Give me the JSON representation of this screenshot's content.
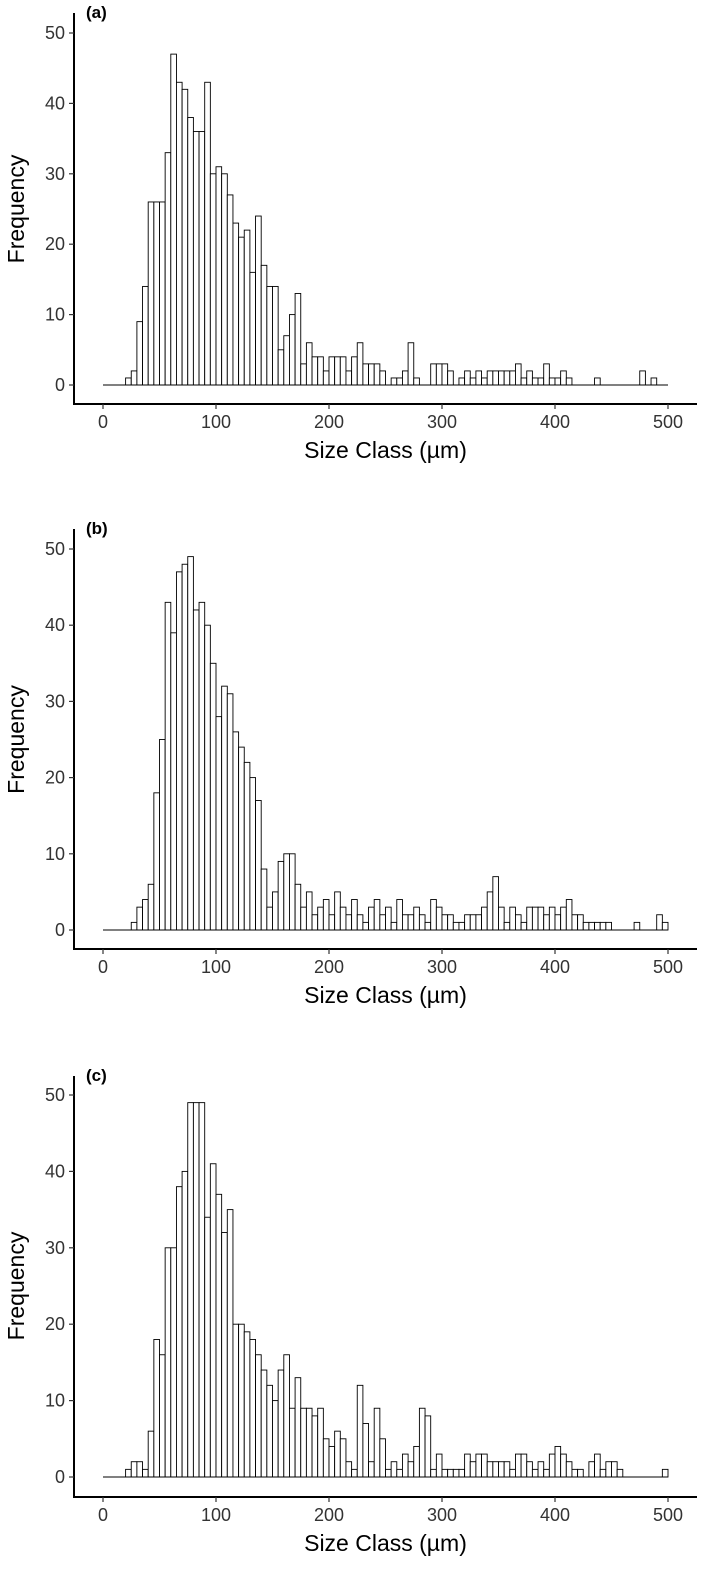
{
  "chart_data": [
    {
      "type": "bar",
      "panel_label": "(a)",
      "xlabel": "Size Class (µm)",
      "ylabel": "Frequency",
      "xlim": [
        0,
        500
      ],
      "ylim": [
        0,
        50
      ],
      "xticks": [
        0,
        100,
        200,
        300,
        400,
        500
      ],
      "yticks": [
        0,
        10,
        20,
        30,
        40,
        50
      ],
      "bin_width": 5,
      "bin_starts": [
        0,
        5,
        10,
        15,
        20,
        25,
        30,
        35,
        40,
        45,
        50,
        55,
        60,
        65,
        70,
        75,
        80,
        85,
        90,
        95,
        100,
        105,
        110,
        115,
        120,
        125,
        130,
        135,
        140,
        145,
        150,
        155,
        160,
        165,
        170,
        175,
        180,
        185,
        190,
        195,
        200,
        205,
        210,
        215,
        220,
        225,
        230,
        235,
        240,
        245,
        250,
        255,
        260,
        265,
        270,
        275,
        280,
        285,
        290,
        295,
        300,
        305,
        310,
        315,
        320,
        325,
        330,
        335,
        340,
        345,
        350,
        355,
        360,
        365,
        370,
        375,
        380,
        385,
        390,
        395,
        400,
        405,
        410,
        415,
        420,
        425,
        430,
        435,
        440,
        445,
        450,
        455,
        460,
        465,
        470,
        475,
        480,
        485,
        490,
        495
      ],
      "values": [
        0,
        0,
        0,
        0,
        1,
        2,
        9,
        14,
        26,
        26,
        26,
        33,
        47,
        43,
        42,
        38,
        36,
        36,
        43,
        30,
        31,
        30,
        27,
        23,
        21,
        22,
        16,
        24,
        17,
        14,
        14,
        5,
        7,
        10,
        13,
        3,
        6,
        4,
        4,
        2,
        4,
        4,
        4,
        2,
        4,
        6,
        3,
        3,
        3,
        2,
        0,
        1,
        1,
        2,
        6,
        1,
        0,
        0,
        3,
        3,
        3,
        2,
        0,
        1,
        2,
        1,
        2,
        1,
        2,
        2,
        2,
        2,
        2,
        3,
        1,
        2,
        1,
        1,
        3,
        1,
        1,
        2,
        1,
        0,
        0,
        0,
        0,
        1,
        0,
        0,
        0,
        0,
        0,
        0,
        0,
        2,
        0,
        1,
        0,
        0
      ],
      "grid": false
    },
    {
      "type": "bar",
      "panel_label": "(b)",
      "xlabel": "Size Class (µm)",
      "ylabel": "Frequency",
      "xlim": [
        0,
        500
      ],
      "ylim": [
        0,
        50
      ],
      "xticks": [
        0,
        100,
        200,
        300,
        400,
        500
      ],
      "yticks": [
        0,
        10,
        20,
        30,
        40,
        50
      ],
      "bin_width": 5,
      "bin_starts": [
        0,
        5,
        10,
        15,
        20,
        25,
        30,
        35,
        40,
        45,
        50,
        55,
        60,
        65,
        70,
        75,
        80,
        85,
        90,
        95,
        100,
        105,
        110,
        115,
        120,
        125,
        130,
        135,
        140,
        145,
        150,
        155,
        160,
        165,
        170,
        175,
        180,
        185,
        190,
        195,
        200,
        205,
        210,
        215,
        220,
        225,
        230,
        235,
        240,
        245,
        250,
        255,
        260,
        265,
        270,
        275,
        280,
        285,
        290,
        295,
        300,
        305,
        310,
        315,
        320,
        325,
        330,
        335,
        340,
        345,
        350,
        355,
        360,
        365,
        370,
        375,
        380,
        385,
        390,
        395,
        400,
        405,
        410,
        415,
        420,
        425,
        430,
        435,
        440,
        445,
        450,
        455,
        460,
        465,
        470,
        475,
        480,
        485,
        490,
        495
      ],
      "values": [
        0,
        0,
        0,
        0,
        0,
        1,
        3,
        4,
        6,
        18,
        25,
        43,
        39,
        47,
        48,
        49,
        42,
        43,
        40,
        35,
        28,
        32,
        31,
        26,
        24,
        22,
        20,
        17,
        8,
        3,
        5,
        9,
        10,
        10,
        6,
        3,
        5,
        2,
        3,
        4,
        2,
        5,
        3,
        2,
        4,
        2,
        1,
        3,
        4,
        2,
        3,
        1,
        4,
        2,
        2,
        3,
        2,
        1,
        4,
        3,
        2,
        2,
        1,
        1,
        2,
        2,
        2,
        3,
        5,
        7,
        3,
        1,
        3,
        2,
        1,
        3,
        3,
        3,
        2,
        3,
        2,
        3,
        4,
        2,
        2,
        1,
        1,
        1,
        1,
        1,
        0,
        0,
        0,
        0,
        1,
        0,
        0,
        0,
        2,
        1
      ],
      "grid": false
    },
    {
      "type": "bar",
      "panel_label": "(c)",
      "xlabel": "Size Class (µm)",
      "ylabel": "Frequency",
      "xlim": [
        0,
        500
      ],
      "ylim": [
        0,
        50
      ],
      "xticks": [
        0,
        100,
        200,
        300,
        400,
        500
      ],
      "yticks": [
        0,
        10,
        20,
        30,
        40,
        50
      ],
      "bin_width": 5,
      "bin_starts": [
        0,
        5,
        10,
        15,
        20,
        25,
        30,
        35,
        40,
        45,
        50,
        55,
        60,
        65,
        70,
        75,
        80,
        85,
        90,
        95,
        100,
        105,
        110,
        115,
        120,
        125,
        130,
        135,
        140,
        145,
        150,
        155,
        160,
        165,
        170,
        175,
        180,
        185,
        190,
        195,
        200,
        205,
        210,
        215,
        220,
        225,
        230,
        235,
        240,
        245,
        250,
        255,
        260,
        265,
        270,
        275,
        280,
        285,
        290,
        295,
        300,
        305,
        310,
        315,
        320,
        325,
        330,
        335,
        340,
        345,
        350,
        355,
        360,
        365,
        370,
        375,
        380,
        385,
        390,
        395,
        400,
        405,
        410,
        415,
        420,
        425,
        430,
        435,
        440,
        445,
        450,
        455,
        460,
        465,
        470,
        475,
        480,
        485,
        490,
        495
      ],
      "values": [
        0,
        0,
        0,
        0,
        1,
        2,
        2,
        1,
        6,
        18,
        16,
        30,
        30,
        38,
        40,
        49,
        49,
        49,
        34,
        41,
        37,
        32,
        35,
        20,
        20,
        19,
        18,
        16,
        14,
        12,
        10,
        14,
        16,
        9,
        13,
        9,
        9,
        8,
        9,
        5,
        4,
        6,
        5,
        2,
        1,
        12,
        7,
        2,
        9,
        5,
        1,
        2,
        1,
        3,
        2,
        4,
        9,
        8,
        1,
        3,
        1,
        1,
        1,
        1,
        3,
        2,
        3,
        3,
        2,
        2,
        2,
        2,
        1,
        3,
        3,
        2,
        1,
        2,
        1,
        3,
        4,
        3,
        2,
        1,
        1,
        0,
        2,
        3,
        1,
        2,
        2,
        1,
        0,
        0,
        0,
        0,
        0,
        0,
        0,
        1
      ],
      "grid": false
    }
  ]
}
